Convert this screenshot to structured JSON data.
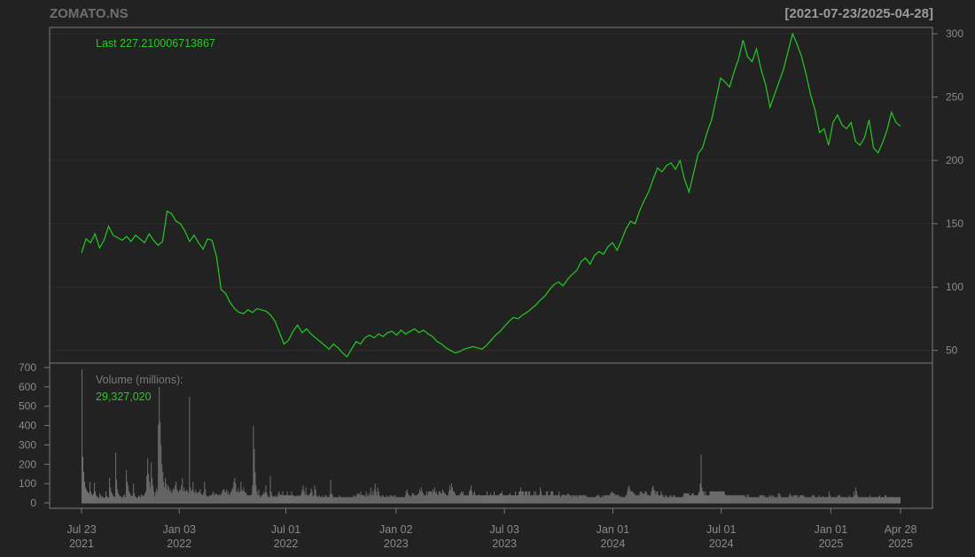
{
  "header": {
    "title": "ZOMATO.NS",
    "date_range": "[2021-07-23/2025-04-28]"
  },
  "colors": {
    "background": "#222222",
    "price_line": "#22cc22",
    "volume_bars": "#6e6e6e",
    "frame": "#7a7a7a"
  },
  "chart_data": [
    {
      "type": "line",
      "series": [
        {
          "values": [
            127,
            138,
            135,
            142,
            131,
            137,
            148,
            141,
            139,
            137,
            140,
            136,
            141,
            138,
            135,
            142,
            137,
            133,
            136,
            160,
            158,
            152,
            150,
            144,
            136,
            141,
            135,
            130,
            138,
            137,
            124,
            98,
            95,
            88,
            83,
            80,
            79,
            82,
            80,
            83,
            82,
            81,
            78,
            73,
            64,
            55,
            58,
            65,
            70,
            64,
            67,
            63,
            60,
            57,
            54,
            51,
            55,
            52,
            48,
            45,
            51,
            57,
            55,
            60,
            62,
            60,
            63,
            61,
            64,
            65,
            62,
            66,
            63,
            65,
            67,
            64,
            66,
            63,
            61,
            57,
            55,
            52,
            50,
            48,
            49,
            51,
            52,
            53,
            52,
            51,
            54,
            58,
            62,
            65,
            69,
            73,
            76,
            75,
            78,
            80,
            83,
            86,
            90,
            93,
            98,
            102,
            104,
            101,
            106,
            110,
            113,
            120,
            123,
            118,
            125,
            128,
            126,
            132,
            135,
            129,
            137,
            146,
            152,
            150,
            160,
            168,
            175,
            185,
            194,
            191,
            196,
            198,
            193,
            200,
            185,
            175,
            190,
            205,
            210,
            222,
            232,
            248,
            265,
            262,
            258,
            270,
            280,
            295,
            282,
            278,
            288,
            272,
            260,
            242,
            252,
            262,
            272,
            286,
            300,
            292,
            282,
            268,
            252,
            240,
            222,
            225,
            212,
            230,
            236,
            228,
            225,
            230,
            215,
            212,
            218,
            232,
            210,
            206,
            214,
            224,
            238,
            230,
            227
          ]
        }
      ],
      "x_range": [
        "2021-07-23",
        "2025-04-28"
      ],
      "ylim": [
        40,
        305
      ],
      "y_ticks": [
        "50",
        "100",
        "150",
        "200",
        "250",
        "300"
      ],
      "y_axis_side": "right",
      "annotation_label": "Last 227.210006713867",
      "grid": true
    },
    {
      "type": "bar",
      "series": [
        {
          "values": [
            690,
            240,
            160,
            110,
            80,
            70,
            60,
            55,
            50,
            110,
            60,
            45,
            40,
            50,
            105,
            60,
            40,
            35,
            30,
            25,
            50,
            40,
            30,
            35,
            30,
            25,
            30,
            60,
            35,
            30,
            28,
            130,
            80,
            60,
            50,
            40,
            35,
            30,
            260,
            120,
            70,
            50,
            40,
            35,
            35,
            28,
            30,
            40,
            45,
            30,
            170,
            110,
            90,
            60,
            50,
            40,
            35,
            40,
            100,
            50,
            35,
            30,
            25,
            30,
            40,
            35,
            30,
            45,
            40,
            35,
            40,
            50,
            60,
            140,
            230,
            150,
            110,
            80,
            210,
            130,
            90,
            60,
            35,
            55,
            75,
            60,
            405,
            600,
            420,
            300,
            200,
            160,
            110,
            80,
            130,
            100,
            70,
            90,
            80,
            60,
            70,
            50,
            60,
            75,
            70,
            90,
            110,
            70,
            60,
            55,
            70,
            65,
            90,
            130,
            60,
            80,
            60,
            60,
            70,
            60,
            50,
            550,
            80,
            60,
            70,
            110,
            60,
            50,
            70,
            55,
            50,
            55,
            60,
            70,
            50,
            45,
            40,
            55,
            110,
            70,
            40,
            35,
            35,
            35,
            40,
            40,
            40,
            50,
            60,
            40,
            45,
            50,
            45,
            40,
            40,
            45,
            40,
            45,
            60,
            70,
            70,
            55,
            60,
            70,
            45,
            60,
            40,
            50,
            60,
            70,
            80,
            110,
            130,
            100,
            60,
            55,
            75,
            55,
            60,
            110,
            70,
            60,
            80,
            60,
            55,
            50,
            40,
            40,
            40,
            40,
            40,
            45,
            90,
            400,
            280,
            160,
            90,
            60,
            40,
            70,
            40,
            30,
            35,
            45,
            45,
            60,
            50,
            90,
            55,
            40,
            30,
            30,
            140,
            60,
            40,
            35,
            30,
            35,
            40,
            30,
            35,
            50,
            60,
            40,
            45,
            40,
            60,
            40,
            40,
            40,
            40,
            60,
            40,
            40,
            40,
            40,
            60,
            40,
            40,
            35,
            35,
            35,
            40,
            35,
            40,
            35,
            40,
            50,
            70,
            90,
            60,
            40,
            80,
            45,
            35,
            40,
            45,
            50,
            75,
            60,
            35,
            40,
            90,
            70,
            40,
            35,
            30,
            40,
            35,
            30,
            30,
            40,
            30,
            30,
            40,
            40,
            30,
            30,
            30,
            45,
            120,
            50,
            40,
            30,
            30,
            30,
            30,
            30,
            30,
            30,
            40,
            30,
            30,
            30,
            30,
            30,
            30,
            30,
            30,
            30,
            30,
            30,
            30,
            30,
            30,
            30,
            40,
            35,
            30,
            40,
            50,
            45,
            50,
            40,
            60,
            40,
            40,
            40,
            40,
            30,
            60,
            40,
            35,
            50,
            40,
            80,
            40,
            60,
            40,
            70,
            100,
            60,
            40,
            80,
            60,
            40,
            35,
            30,
            40,
            40,
            30,
            30,
            30,
            40,
            30,
            35,
            30,
            40,
            40,
            35,
            30,
            40,
            30,
            40,
            30,
            30,
            30,
            30,
            30,
            30,
            30,
            30,
            30,
            30,
            40,
            60,
            70,
            50,
            40,
            40,
            30,
            40,
            50,
            50,
            40,
            40,
            40,
            40,
            45,
            50,
            70,
            60,
            80,
            60,
            50,
            40,
            40,
            40,
            60,
            40,
            60,
            60,
            60,
            60,
            50,
            70,
            60,
            80,
            50,
            60,
            45,
            40,
            60,
            60,
            50,
            50,
            70,
            60,
            50,
            50,
            40,
            40,
            40,
            60,
            90,
            70,
            100,
            80,
            60,
            60,
            50,
            40,
            40,
            40,
            40,
            40,
            50,
            60,
            50,
            60,
            40,
            40,
            40,
            40,
            40,
            40,
            60,
            70,
            90,
            60,
            40,
            50,
            60,
            40,
            40,
            40,
            40,
            45,
            40,
            40,
            40,
            40,
            40,
            40,
            40,
            40,
            60,
            40,
            40,
            40,
            50,
            40,
            40,
            40,
            60,
            40,
            40,
            40,
            40,
            40,
            45,
            50,
            50,
            60,
            40,
            40,
            40,
            40,
            40,
            40,
            40,
            45,
            50,
            40,
            40,
            40,
            40,
            40,
            60,
            40,
            40,
            40,
            60,
            60,
            80,
            60,
            60,
            60,
            40,
            60,
            60,
            60,
            40,
            60,
            60,
            40,
            40,
            40,
            40,
            60,
            40,
            60,
            40,
            40,
            40,
            45,
            80,
            60,
            40,
            40,
            40,
            40,
            40,
            60,
            60,
            40,
            40,
            40,
            60,
            60,
            60,
            40,
            40,
            40,
            40,
            40,
            40,
            60,
            40,
            30,
            40,
            40,
            45,
            40,
            40,
            40,
            40,
            50,
            45,
            40,
            40,
            40,
            30,
            40,
            40,
            35,
            40,
            40,
            30,
            40,
            40,
            40,
            40,
            40,
            40,
            40,
            40,
            40,
            35,
            30,
            30,
            30,
            30,
            30,
            30,
            30,
            30,
            30,
            30,
            35,
            40,
            40,
            40,
            30,
            30,
            30,
            40,
            30,
            40,
            40,
            40,
            40,
            40,
            40,
            40,
            50,
            55,
            60,
            50,
            50,
            45,
            40,
            40,
            45,
            40,
            35,
            30,
            35,
            30,
            30,
            30,
            30,
            40,
            40,
            60,
            80,
            90,
            70,
            60,
            60,
            60,
            50,
            50,
            40,
            40,
            40,
            40,
            40,
            50,
            60,
            60,
            50,
            50,
            45,
            60,
            60,
            50,
            40,
            40,
            40,
            40,
            60,
            80,
            90,
            70,
            60,
            45,
            60,
            60,
            40,
            40,
            40,
            60,
            45,
            40,
            30,
            30,
            40,
            40,
            30,
            30,
            30,
            40,
            40,
            30,
            30,
            40,
            40,
            30,
            30,
            30,
            30,
            30,
            30,
            30,
            30,
            30,
            40,
            50,
            50,
            50,
            50,
            50,
            50,
            40,
            40,
            40,
            50,
            50,
            40,
            40,
            40,
            40,
            40,
            50,
            60,
            100,
            250,
            80,
            60,
            60,
            40,
            60,
            40,
            40,
            40,
            40,
            60,
            60,
            60,
            60,
            60,
            60,
            60,
            60,
            60,
            60,
            60,
            60,
            60,
            60,
            60,
            60,
            60,
            45,
            40,
            40,
            40,
            40,
            40,
            40,
            40,
            40,
            40,
            40,
            40,
            40,
            40,
            40,
            40,
            40,
            40,
            40,
            40,
            40,
            40,
            40,
            30,
            30,
            40,
            45,
            30,
            30,
            30,
            30,
            30,
            30,
            30,
            30,
            30,
            30,
            30,
            30,
            40,
            40,
            40,
            40,
            40,
            40,
            30,
            30,
            30,
            30,
            30,
            40,
            40,
            30,
            40,
            40,
            30,
            30,
            30,
            30,
            30,
            50,
            50,
            40,
            30,
            30,
            30,
            30,
            30,
            30,
            30,
            30,
            30,
            40,
            50,
            40,
            35,
            30,
            40,
            40,
            40,
            40,
            40,
            30,
            30,
            40,
            40,
            40,
            40,
            40,
            35,
            30,
            30,
            30,
            30,
            30,
            30,
            30,
            30,
            40,
            40,
            40,
            30,
            30,
            30,
            30,
            30,
            40,
            30,
            30,
            30,
            35,
            30,
            30,
            30,
            30,
            30,
            30,
            60,
            40,
            30,
            30,
            30,
            30,
            30,
            30,
            30,
            30,
            40,
            40,
            40,
            30,
            30,
            30,
            30,
            30,
            30,
            30,
            30,
            30,
            30,
            40,
            30,
            30,
            30,
            30,
            60,
            40,
            80,
            60,
            40,
            30,
            30,
            30,
            30,
            30,
            30,
            30,
            30,
            30,
            30,
            30,
            30,
            30,
            40,
            30,
            30,
            30,
            30,
            30,
            30,
            30,
            30,
            30,
            35,
            40,
            30,
            30,
            30,
            30,
            30,
            40,
            40,
            30,
            30,
            30,
            30,
            30,
            30,
            30,
            30,
            30,
            30,
            30,
            30,
            30,
            30,
            30,
            30
          ]
        }
      ],
      "ylim": [
        0,
        700
      ],
      "y_ticks": [
        "0",
        "100",
        "200",
        "300",
        "400",
        "500",
        "600",
        "700"
      ],
      "y_axis_side": "left",
      "annotation_label": "Volume (millions):",
      "annotation_value": "29,327,020"
    }
  ],
  "x_axis": {
    "ticks": [
      {
        "date": "2021-07-23",
        "line1": "Jul 23",
        "line2": "2021"
      },
      {
        "date": "2022-01-03",
        "line1": "Jan 03",
        "line2": "2022"
      },
      {
        "date": "2022-07-01",
        "line1": "Jul 01",
        "line2": "2022"
      },
      {
        "date": "2023-01-02",
        "line1": "Jan 02",
        "line2": "2023"
      },
      {
        "date": "2023-07-03",
        "line1": "Jul 03",
        "line2": "2023"
      },
      {
        "date": "2024-01-01",
        "line1": "Jan 01",
        "line2": "2024"
      },
      {
        "date": "2024-07-01",
        "line1": "Jul 01",
        "line2": "2024"
      },
      {
        "date": "2025-01-01",
        "line1": "Jan 01",
        "line2": "2025"
      },
      {
        "date": "2025-04-28",
        "line1": "Apr 28",
        "line2": "2025"
      }
    ]
  }
}
